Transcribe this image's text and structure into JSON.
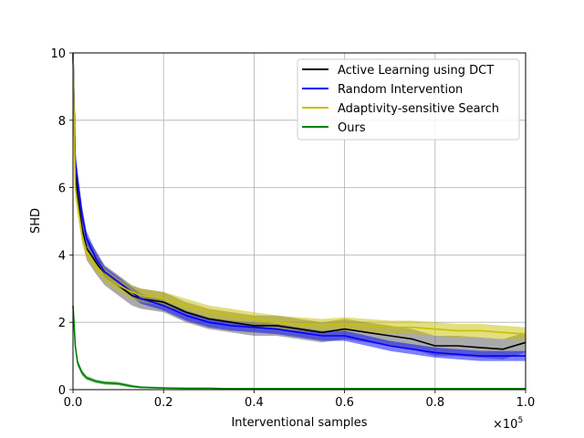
{
  "chart_data": {
    "type": "line",
    "title": "",
    "xlabel": "Interventional samples",
    "ylabel": "SHD",
    "x_scale_note": "×10^5",
    "xlim": [
      0,
      1.0
    ],
    "ylim": [
      0,
      10
    ],
    "xticks": [
      "0.0",
      "0.2",
      "0.4",
      "0.6",
      "0.8",
      "1.0"
    ],
    "yticks": [
      "0",
      "2",
      "4",
      "6",
      "8",
      "10"
    ],
    "grid": true,
    "legend_position": "top-right",
    "x": [
      0.0,
      0.005,
      0.01,
      0.02,
      0.03,
      0.05,
      0.07,
      0.1,
      0.13,
      0.15,
      0.2,
      0.25,
      0.3,
      0.35,
      0.4,
      0.45,
      0.5,
      0.55,
      0.6,
      0.65,
      0.7,
      0.75,
      0.8,
      0.85,
      0.9,
      0.95,
      1.0
    ],
    "series": [
      {
        "name": "Active Learning using DCT",
        "color": "#000000",
        "band_color": "#555555",
        "values": [
          10.0,
          6.5,
          5.8,
          4.8,
          4.2,
          3.8,
          3.4,
          3.1,
          2.8,
          2.7,
          2.6,
          2.3,
          2.1,
          2.0,
          1.9,
          1.9,
          1.8,
          1.7,
          1.8,
          1.7,
          1.6,
          1.5,
          1.3,
          1.3,
          1.25,
          1.2,
          1.4
        ],
        "band": [
          0.3,
          0.35,
          0.35,
          0.35,
          0.35,
          0.35,
          0.3,
          0.3,
          0.3,
          0.3,
          0.3,
          0.3,
          0.3,
          0.3,
          0.3,
          0.3,
          0.3,
          0.3,
          0.3,
          0.3,
          0.3,
          0.3,
          0.3,
          0.3,
          0.3,
          0.3,
          0.3
        ]
      },
      {
        "name": "Random Intervention",
        "color": "#0000ff",
        "band_color": "#0000ff",
        "values": [
          10.0,
          6.8,
          6.2,
          5.2,
          4.5,
          3.9,
          3.5,
          3.2,
          2.9,
          2.7,
          2.5,
          2.2,
          2.0,
          1.9,
          1.85,
          1.8,
          1.7,
          1.6,
          1.6,
          1.45,
          1.3,
          1.2,
          1.1,
          1.05,
          1.0,
          1.0,
          1.0
        ],
        "band": [
          0.3,
          0.3,
          0.3,
          0.25,
          0.2,
          0.2,
          0.15,
          0.15,
          0.15,
          0.15,
          0.15,
          0.15,
          0.15,
          0.15,
          0.15,
          0.15,
          0.15,
          0.15,
          0.15,
          0.15,
          0.15,
          0.15,
          0.15,
          0.15,
          0.15,
          0.15,
          0.15
        ]
      },
      {
        "name": "Adaptivity-sensitive Search",
        "color": "#c8c000",
        "band_color": "#c8c000",
        "values": [
          10.0,
          6.0,
          5.5,
          4.6,
          4.1,
          3.7,
          3.4,
          3.1,
          2.9,
          2.8,
          2.7,
          2.5,
          2.3,
          2.2,
          2.1,
          2.0,
          1.95,
          1.9,
          1.95,
          1.9,
          1.85,
          1.85,
          1.8,
          1.75,
          1.75,
          1.7,
          1.65
        ],
        "band": [
          0.3,
          0.3,
          0.3,
          0.25,
          0.2,
          0.2,
          0.2,
          0.2,
          0.2,
          0.2,
          0.2,
          0.2,
          0.2,
          0.2,
          0.2,
          0.2,
          0.2,
          0.2,
          0.2,
          0.2,
          0.2,
          0.2,
          0.2,
          0.2,
          0.2,
          0.2,
          0.2
        ]
      },
      {
        "name": "Ours",
        "color": "#008000",
        "band_color": "#008000",
        "values": [
          2.5,
          1.3,
          0.8,
          0.5,
          0.35,
          0.25,
          0.2,
          0.18,
          0.1,
          0.07,
          0.05,
          0.04,
          0.04,
          0.03,
          0.03,
          0.03,
          0.03,
          0.03,
          0.03,
          0.03,
          0.03,
          0.03,
          0.03,
          0.03,
          0.03,
          0.03,
          0.03
        ],
        "band": [
          0.1,
          0.1,
          0.1,
          0.08,
          0.06,
          0.05,
          0.05,
          0.05,
          0.04,
          0.03,
          0.02,
          0.02,
          0.02,
          0.02,
          0.02,
          0.02,
          0.02,
          0.02,
          0.02,
          0.02,
          0.02,
          0.02,
          0.02,
          0.02,
          0.02,
          0.02,
          0.02
        ]
      }
    ]
  }
}
